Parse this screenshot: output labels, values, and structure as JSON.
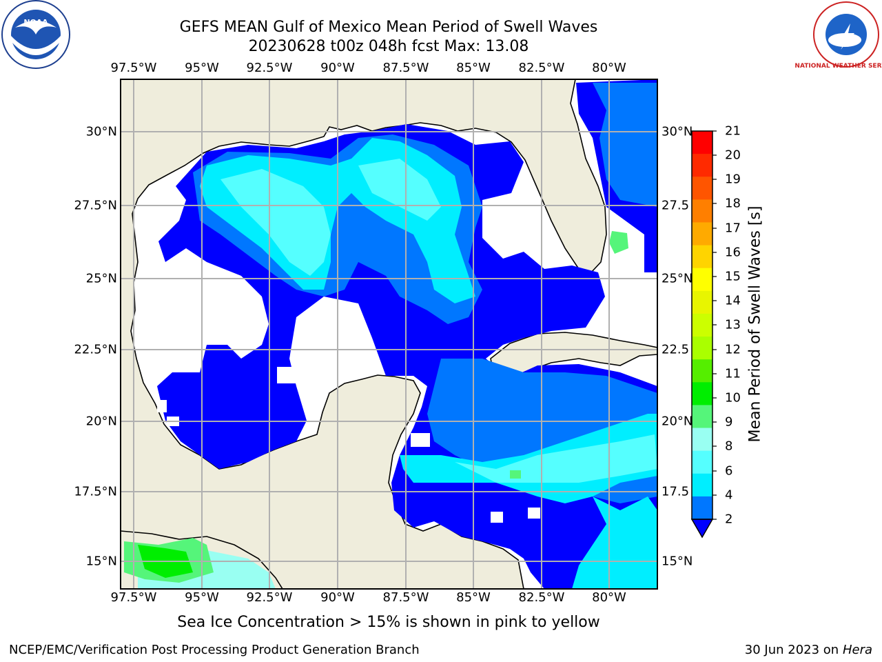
{
  "header": {
    "title_line1": "GEFS MEAN Gulf of Mexico Mean Period of Swell Waves",
    "title_line2": "20230628 t00z 048h fcst   Max: 13.08"
  },
  "map": {
    "lon_labels": [
      "97.5°W",
      "95°W",
      "92.5°W",
      "90°W",
      "87.5°W",
      "85°W",
      "82.5°W",
      "80°W"
    ],
    "lat_labels_left": [
      "30°N",
      "27.5°N",
      "25°N",
      "22.5°N",
      "20°N",
      "17.5°N",
      "15°N"
    ],
    "lat_labels_right": [
      "30°N",
      "27.5",
      "25°N",
      "22.5",
      "20°N",
      "17.5",
      "15°N"
    ]
  },
  "colorbar": {
    "label": "Mean Period of Swell Waves [s]",
    "ticks": [
      "21",
      "20",
      "19",
      "18",
      "17",
      "16",
      "15",
      "14",
      "13",
      "12",
      "11",
      "10",
      "9",
      "8",
      "6",
      "4",
      "2"
    ],
    "colors": [
      "#ff0000",
      "#ff2a00",
      "#ff5500",
      "#ff7f00",
      "#ffaa00",
      "#ffd400",
      "#ffff00",
      "#e8f500",
      "#ccff00",
      "#aaff00",
      "#55ee00",
      "#00ee00",
      "#55f57a",
      "#99fff2",
      "#55ffff",
      "#00eeff",
      "#0077ff",
      "#0000ff"
    ]
  },
  "note": "Sea Ice Concentration > 15% is shown in pink to yellow",
  "footer": {
    "left": "NCEP/EMC/Verification Post Processing Product Generation Branch",
    "right_prefix": "30 Jun 2023 on",
    "right_machine": "Hera"
  },
  "logos": {
    "left": "noaa-logo",
    "right": "national-weather-service-logo",
    "left_text": "NOAA",
    "right_text": "NATIONAL WEATHER SERVICE"
  }
}
